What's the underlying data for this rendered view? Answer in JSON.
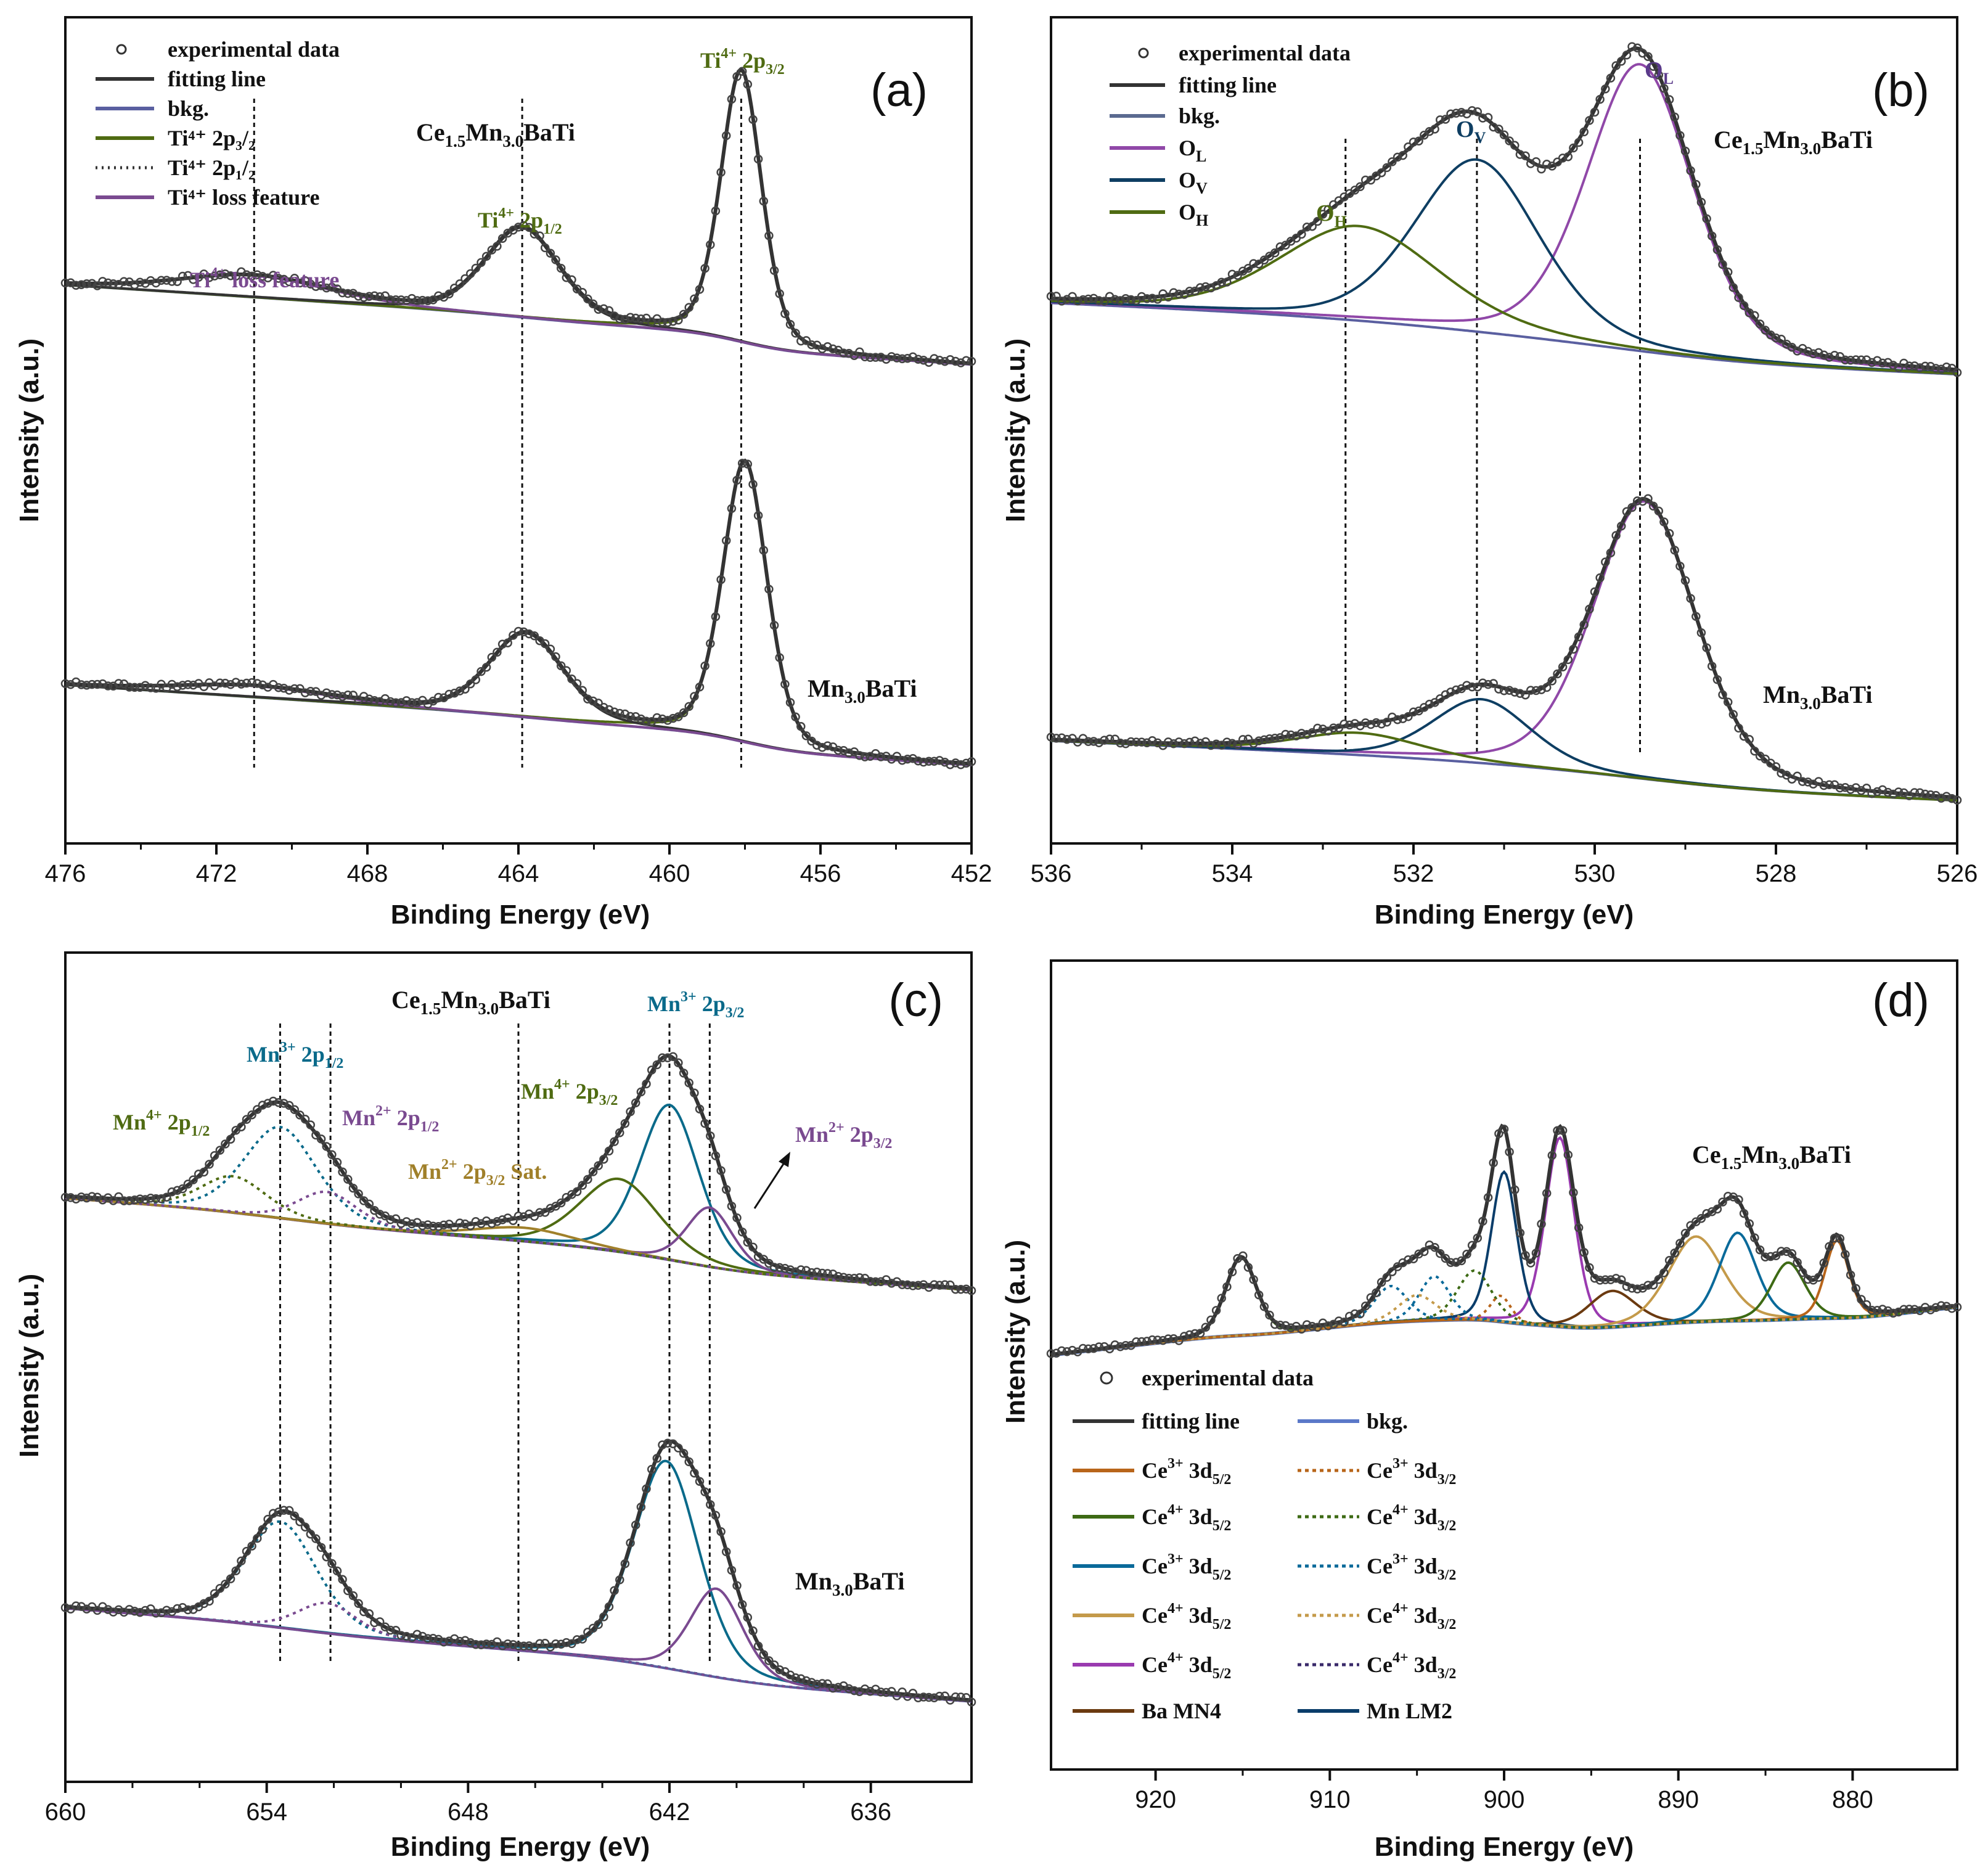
{
  "figure": {
    "type": "multi-panel XPS spectra",
    "panels": [
      "a",
      "b",
      "c",
      "d"
    ]
  },
  "chart_data": [
    {
      "panel": "a",
      "type": "line",
      "label": "(a)",
      "xlabel": "Binding Energy (eV)",
      "ylabel": "Intensity (a.u.)",
      "xlim": [
        476,
        452
      ],
      "x_reversed": true,
      "xticks": [
        "476",
        "472",
        "468",
        "464",
        "460",
        "456",
        "452"
      ],
      "legend": [
        {
          "label": "experimental data",
          "color": "#333333",
          "style": "circle"
        },
        {
          "label": "fitting line",
          "color": "#333333",
          "style": "solid"
        },
        {
          "label": "bkg.",
          "color": "#5a5fa0",
          "style": "solid"
        },
        {
          "label": "Ti⁴⁺ 2p₃/₂",
          "color": "#4f6b12",
          "style": "solid"
        },
        {
          "label": "Ti⁴⁺ 2p₁/₂",
          "color": "#333333",
          "style": "dotted"
        },
        {
          "label": "Ti⁴⁺ loss feature",
          "color": "#7a4a90",
          "style": "solid"
        }
      ],
      "annotations": [
        {
          "text": "Ti⁴⁺ 2p₃/₂",
          "color": "#4f6b12"
        },
        {
          "text": "Ti⁴⁺ 2p₁/₂",
          "color": "#4f6b12"
        },
        {
          "text": "Ti⁴⁺ loss feature",
          "color": "#7a4a90"
        }
      ],
      "reference_lines_eV": [
        471.0,
        463.9,
        458.1
      ],
      "series": [
        {
          "name": "Ce₁.₅Mn₃.₀BaTi",
          "offset": 1.0,
          "baseline": [
            0.12,
            0.02
          ],
          "peaks": [
            {
              "name": "Ti⁴⁺ 2p₃/₂",
              "center": 458.1,
              "height": 1.0,
              "width": 0.55,
              "color": "#4f6b12"
            },
            {
              "name": "Ti⁴⁺ 2p₁/₂",
              "center": 463.9,
              "height": 0.33,
              "width": 1.0,
              "color": "#333333"
            },
            {
              "name": "Ti⁴⁺ loss feature",
              "center": 471.0,
              "height": 0.08,
              "width": 2.0,
              "color": "#7a4a90"
            }
          ]
        },
        {
          "name": "Mn₃.₀BaTi",
          "offset": 0.0,
          "baseline": [
            0.12,
            0.02
          ],
          "peaks": [
            {
              "name": "Ti⁴⁺ 2p₃/₂",
              "center": 458.0,
              "height": 1.0,
              "width": 0.6,
              "color": "#4f6b12"
            },
            {
              "name": "Ti⁴⁺ 2p₁/₂",
              "center": 463.8,
              "height": 0.3,
              "width": 1.0,
              "color": "#333333"
            },
            {
              "name": "Ti⁴⁺ loss feature",
              "center": 471.0,
              "height": 0.04,
              "width": 2.0,
              "color": "#7a4a90"
            }
          ]
        }
      ]
    },
    {
      "panel": "b",
      "type": "line",
      "label": "(b)",
      "xlabel": "Binding Energy (eV)",
      "ylabel": "Intensity (a.u.)",
      "xlim": [
        536,
        526
      ],
      "x_reversed": true,
      "xticks": [
        "536",
        "534",
        "532",
        "530",
        "528",
        "526"
      ],
      "legend": [
        {
          "label": "experimental data",
          "color": "#333333",
          "style": "circle"
        },
        {
          "label": "fitting line",
          "color": "#333333",
          "style": "solid"
        },
        {
          "label": "bkg.",
          "color": "#5a6a90",
          "style": "solid"
        },
        {
          "label": "O_L",
          "color": "#9048a8",
          "style": "solid"
        },
        {
          "label": "O_V",
          "color": "#0e3e62",
          "style": "solid"
        },
        {
          "label": "O_H",
          "color": "#4f6b12",
          "style": "solid"
        }
      ],
      "annotations": [
        {
          "text": "O_L",
          "color": "#5a3a8a"
        },
        {
          "text": "O_V",
          "color": "#0e3e62"
        },
        {
          "text": "O_H",
          "color": "#4f6b12"
        }
      ],
      "reference_lines_eV": [
        532.75,
        531.3,
        529.5
      ],
      "series": [
        {
          "name": "Ce₁.₅Mn₃.₀BaTi",
          "offset": 1.0,
          "baseline": [
            0.08,
            0.01
          ],
          "peaks": [
            {
              "name": "O_L",
              "center": 529.5,
              "height": 1.0,
              "width": 0.6,
              "color": "#9048a8"
            },
            {
              "name": "O_V",
              "center": 531.3,
              "height": 0.6,
              "width": 0.7,
              "color": "#0e3e62"
            },
            {
              "name": "O_H",
              "center": 532.6,
              "height": 0.33,
              "width": 0.9,
              "color": "#4f6b12"
            }
          ]
        },
        {
          "name": "Mn₃.₀BaTi",
          "offset": 0.0,
          "baseline": [
            0.08,
            0.01
          ],
          "peaks": [
            {
              "name": "O_L",
              "center": 529.45,
              "height": 1.0,
              "width": 0.58,
              "color": "#9048a8"
            },
            {
              "name": "O_V",
              "center": 531.25,
              "height": 0.23,
              "width": 0.55,
              "color": "#0e3e62"
            },
            {
              "name": "O_H",
              "center": 532.6,
              "height": 0.08,
              "width": 0.7,
              "color": "#4f6b12"
            }
          ]
        }
      ]
    },
    {
      "panel": "c",
      "type": "line",
      "label": "(c)",
      "xlabel": "Binding Energy (eV)",
      "ylabel": "Intensity (a.u.)",
      "xlim": [
        660,
        633
      ],
      "x_reversed": true,
      "xticks": [
        "660",
        "654",
        "648",
        "642",
        "636"
      ],
      "annotations": [
        {
          "text": "Mn³⁺ 2p₃/₂",
          "color": "#0a6a8a"
        },
        {
          "text": "Mn³⁺ 2p₁/₂",
          "color": "#0a6a8a"
        },
        {
          "text": "Mn⁴⁺ 2p₃/₂",
          "color": "#4f6b12"
        },
        {
          "text": "Mn⁴⁺ 2p₁/₂",
          "color": "#4f6b12"
        },
        {
          "text": "Mn²⁺ 2p₁/₂",
          "color": "#7a4a90"
        },
        {
          "text": "Mn²⁺ 2p₃/₂",
          "color": "#7a4a90"
        },
        {
          "text": "Mn²⁺ 2p₃/₂ Sat.",
          "color": "#a0802a"
        }
      ],
      "reference_lines_eV": [
        653.6,
        652.1,
        646.5,
        642.0,
        640.8
      ],
      "series": [
        {
          "name": "Ce₁.₅Mn₃.₀BaTi",
          "offset": 1.0,
          "baseline": [
            0.14,
            0.02
          ],
          "peaks": [
            {
              "name": "Mn³⁺ 2p₃/₂",
              "center": 642.0,
              "height": 0.68,
              "width": 0.9,
              "color": "#0a6a8a"
            },
            {
              "name": "Mn⁴⁺ 2p₃/₂",
              "center": 643.5,
              "height": 0.32,
              "width": 1.2,
              "color": "#4f6b12"
            },
            {
              "name": "Mn²⁺ 2p₃/₂",
              "center": 640.8,
              "height": 0.26,
              "width": 0.7,
              "color": "#7a4a90"
            },
            {
              "name": "Mn²⁺ 2p₃/₂ Sat.",
              "center": 646.3,
              "height": 0.06,
              "width": 1.5,
              "color": "#a0802a"
            },
            {
              "name": "Mn³⁺ 2p₁/₂",
              "center": 653.6,
              "height": 0.4,
              "width": 1.1,
              "color": "#0a6a8a",
              "dashed": true
            },
            {
              "name": "Mn⁴⁺ 2p₁/₂",
              "center": 655.0,
              "height": 0.16,
              "width": 1.0,
              "color": "#4f6b12",
              "dashed": true
            },
            {
              "name": "Mn²⁺ 2p₁/₂",
              "center": 652.2,
              "height": 0.14,
              "width": 0.9,
              "color": "#7a4a90",
              "dashed": true
            }
          ]
        },
        {
          "name": "Mn₃.₀BaTi",
          "offset": 0.0,
          "baseline": [
            0.14,
            0.02
          ],
          "peaks": [
            {
              "name": "Mn³⁺ 2p₃/₂",
              "center": 642.1,
              "height": 0.82,
              "width": 1.0,
              "color": "#0a6a8a"
            },
            {
              "name": "Mn²⁺ 2p₃/₂",
              "center": 640.6,
              "height": 0.35,
              "width": 0.8,
              "color": "#7a4a90"
            },
            {
              "name": "Mn³⁺ 2p₁/₂",
              "center": 653.6,
              "height": 0.42,
              "width": 1.1,
              "color": "#0a6a8a",
              "dashed": true
            },
            {
              "name": "Mn²⁺ 2p₁/₂",
              "center": 652.2,
              "height": 0.12,
              "width": 0.9,
              "color": "#7a4a90",
              "dashed": true
            }
          ]
        }
      ]
    },
    {
      "panel": "d",
      "type": "line",
      "label": "(d)",
      "xlabel": "Binding Energy (eV)",
      "ylabel": "Intensity (a.u.)",
      "xlim": [
        926,
        874
      ],
      "x_reversed": true,
      "xticks": [
        "920",
        "910",
        "900",
        "890",
        "880"
      ],
      "legend": [
        {
          "label": "experimental data",
          "color": "#333333",
          "style": "circle"
        },
        {
          "label": "fitting line",
          "color": "#333333",
          "style": "solid"
        },
        {
          "label": "bkg.",
          "color": "#5a78c8",
          "style": "solid"
        },
        {
          "label": "Ce³⁺ 3d₅/₂",
          "color": "#b8651a",
          "style": "solid"
        },
        {
          "label": "Ce³⁺ 3d₃/₂",
          "color": "#b8651a",
          "style": "dotted"
        },
        {
          "label": "Ce⁴⁺ 3d₅/₂",
          "color": "#3d6a14",
          "style": "solid"
        },
        {
          "label": "Ce⁴⁺ 3d₃/₂",
          "color": "#3d6a14",
          "style": "dotted"
        },
        {
          "label": "Ce³⁺ 3d₅/₂",
          "color": "#0a6a9a",
          "style": "solid"
        },
        {
          "label": "Ce³⁺ 3d₃/₂",
          "color": "#0a6a9a",
          "style": "dotted"
        },
        {
          "label": "Ce⁴⁺ 3d₅/₂",
          "color": "#c49a4a",
          "style": "solid"
        },
        {
          "label": "Ce⁴⁺ 3d₃/₂",
          "color": "#c49a4a",
          "style": "dotted"
        },
        {
          "label": "Ce⁴⁺ 3d₅/₂",
          "color": "#9a3ab0",
          "style": "solid"
        },
        {
          "label": "Ce⁴⁺ 3d₃/₂",
          "color": "#3a2a6a",
          "style": "dotted"
        },
        {
          "label": "Ba MN4",
          "color": "#6b3a10",
          "style": "solid"
        },
        {
          "label": "Mn LM2",
          "color": "#0a3d6a",
          "style": "solid"
        }
      ],
      "series": [
        {
          "name": "Ce₁.₅Mn₃.₀BaTi",
          "offset": 0.0,
          "baseline": [
            0.62,
            0.0
          ],
          "peaks": [
            {
              "name": "Ce⁴⁺ 3d₃/₂ (u''')",
              "center": 915.1,
              "height": 0.3,
              "width": 0.9,
              "color": "#3d6a14"
            },
            {
              "name": "Ce⁴⁺ 3d₅/₂",
              "center": 896.8,
              "height": 0.73,
              "width": 0.85,
              "color": "#9a3ab0"
            },
            {
              "name": "Mn LM2",
              "center": 900.0,
              "height": 0.58,
              "width": 0.75,
              "color": "#0a3d6a"
            },
            {
              "name": "Ba MN4",
              "center": 893.8,
              "height": 0.14,
              "width": 1.4,
              "color": "#6b3a10"
            },
            {
              "name": "Ce⁴⁺ 3d₅/₂",
              "center": 889.0,
              "height": 0.33,
              "width": 1.6,
              "color": "#c49a4a"
            },
            {
              "name": "Ce³⁺ 3d₅/₂",
              "center": 886.6,
              "height": 0.34,
              "width": 1.1,
              "color": "#0a6a9a"
            },
            {
              "name": "Ce⁴⁺ 3d₅/₂",
              "center": 883.7,
              "height": 0.22,
              "width": 1.0,
              "color": "#3d6a14"
            },
            {
              "name": "Ce³⁺ 3d₅/₂",
              "center": 880.9,
              "height": 0.3,
              "width": 0.7,
              "color": "#b8651a"
            },
            {
              "name": "Ce³⁺ 3d₃/₂",
              "center": 906.5,
              "height": 0.14,
              "width": 1.0,
              "color": "#0a6a9a",
              "dashed": true
            },
            {
              "name": "Ce³⁺ 3d₃/₂",
              "center": 904.0,
              "height": 0.17,
              "width": 0.9,
              "color": "#0a6a9a",
              "dashed": true
            },
            {
              "name": "Ce⁴⁺ 3d₃/₂",
              "center": 901.7,
              "height": 0.19,
              "width": 1.0,
              "color": "#3d6a14",
              "dashed": true
            },
            {
              "name": "Ce³⁺ 3d₃/₂",
              "center": 900.2,
              "height": 0.1,
              "width": 0.6,
              "color": "#b8651a",
              "dashed": true
            },
            {
              "name": "Ce⁴⁺ 3d₃/₂",
              "center": 905.0,
              "height": 0.1,
              "width": 1.1,
              "color": "#c49a4a",
              "dashed": true
            }
          ]
        }
      ]
    }
  ]
}
